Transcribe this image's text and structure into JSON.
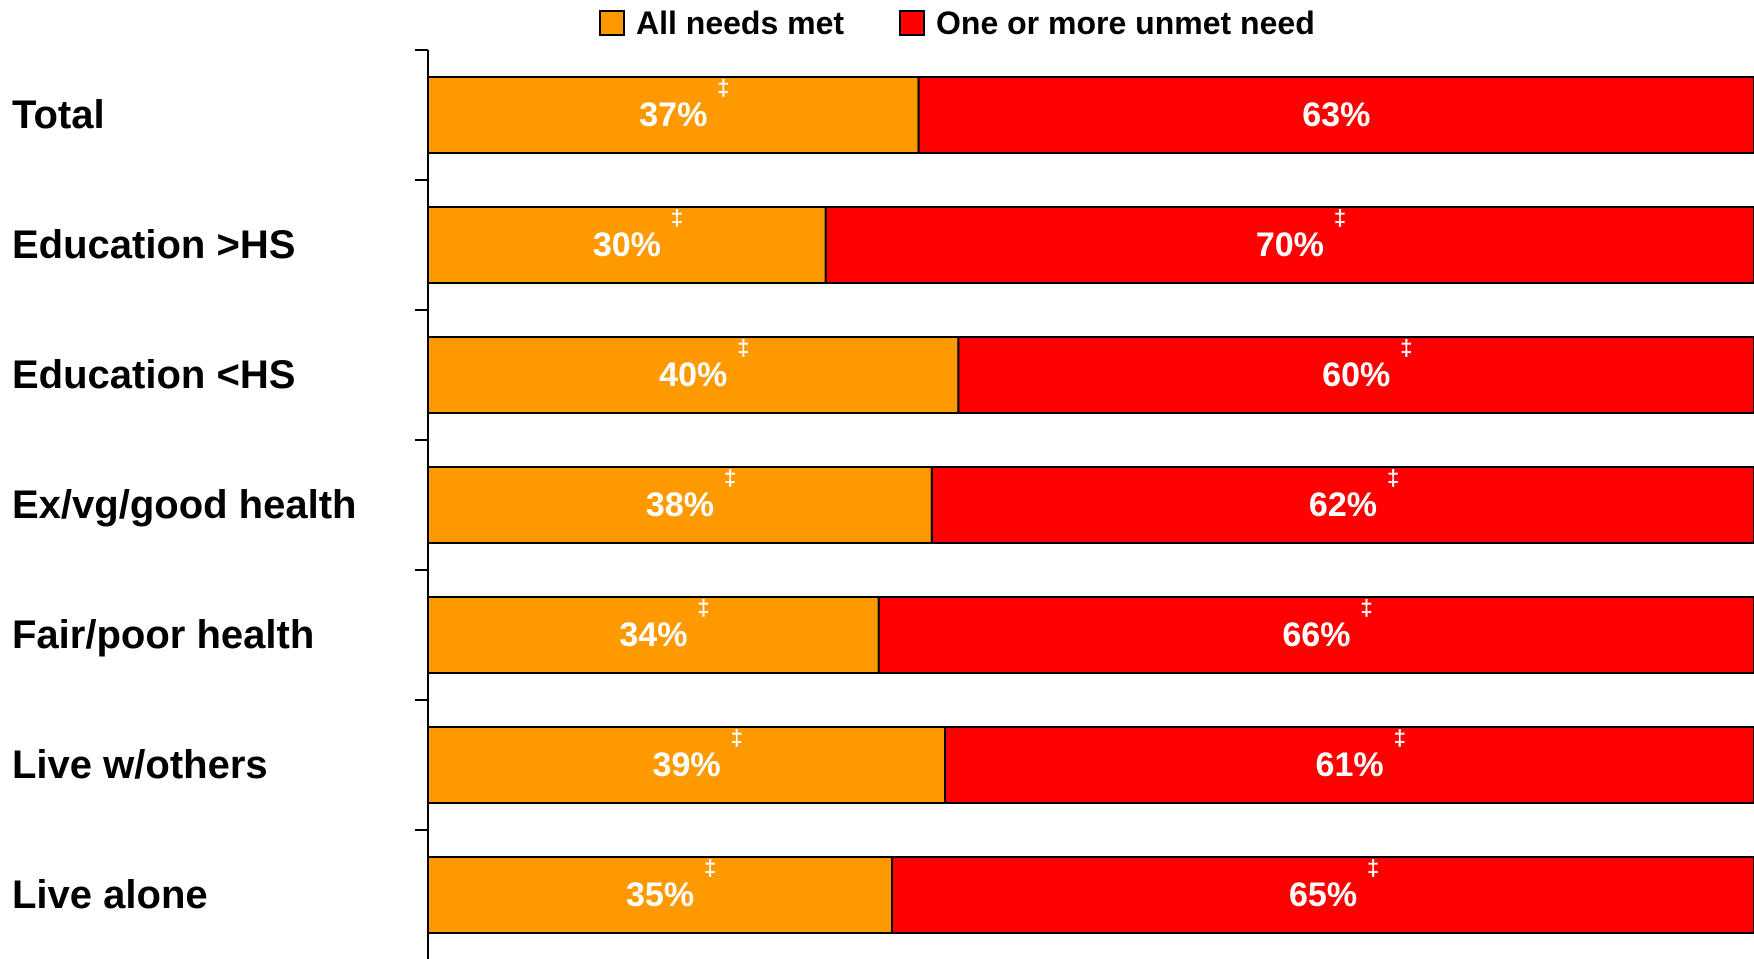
{
  "chart_data": {
    "type": "bar",
    "orientation": "horizontal",
    "stacked": true,
    "percent_stacked": true,
    "categories": [
      "Total",
      "Education >HS",
      "Education <HS",
      "Ex/vg/good health",
      "Fair/poor health",
      "Live w/others",
      "Live alone"
    ],
    "series": [
      {
        "name": "All needs met",
        "color": "#ff9900",
        "values": [
          37,
          30,
          40,
          38,
          34,
          39,
          35
        ],
        "labels": [
          "37%",
          "30%",
          "40%",
          "38%",
          "34%",
          "39%",
          "35%"
        ],
        "marks": [
          "‡",
          "‡",
          "‡",
          "‡",
          "‡",
          "‡",
          "‡"
        ]
      },
      {
        "name": "One or more unmet need",
        "color": "#ff0000",
        "values": [
          63,
          70,
          60,
          62,
          66,
          61,
          65
        ],
        "labels": [
          "63%",
          "70%",
          "60%",
          "62%",
          "66%",
          "61%",
          "65%"
        ],
        "marks": [
          "",
          "‡",
          "‡",
          "‡",
          "‡",
          "‡",
          "‡"
        ]
      }
    ],
    "xlim": [
      0,
      100
    ],
    "legend_position": "top",
    "grid": false
  }
}
